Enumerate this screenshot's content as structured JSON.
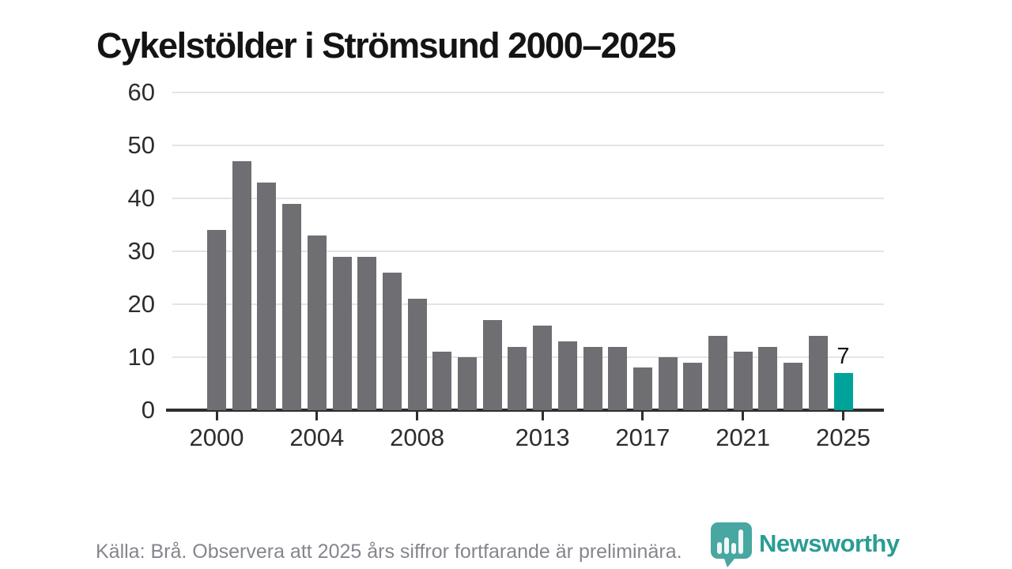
{
  "title": "Cykelstölder i Strömsund 2000–2025",
  "colors": {
    "bar": "#6e6e73",
    "highlight": "#00a39a",
    "grid": "#e4e4e4",
    "axis": "#2e2e2e",
    "brand": "#2a9d94",
    "footer_text": "#85858d"
  },
  "chart_data": {
    "type": "bar",
    "title": "Cykelstölder i Strömsund 2000–2025",
    "categories": [
      2000,
      2001,
      2002,
      2003,
      2004,
      2005,
      2006,
      2007,
      2008,
      2009,
      2010,
      2011,
      2012,
      2013,
      2014,
      2015,
      2016,
      2017,
      2018,
      2019,
      2020,
      2021,
      2022,
      2023,
      2024,
      2025
    ],
    "values": [
      34,
      47,
      43,
      39,
      33,
      29,
      29,
      26,
      21,
      11,
      10,
      17,
      12,
      16,
      13,
      12,
      12,
      8,
      10,
      9,
      14,
      11,
      12,
      9,
      14,
      7
    ],
    "highlight_index": 25,
    "highlight_label": "7",
    "x_tick_years": [
      2000,
      2004,
      2008,
      2013,
      2017,
      2021,
      2025
    ],
    "y_ticks": [
      0,
      10,
      20,
      30,
      40,
      50,
      60
    ],
    "ylim": [
      0,
      60
    ],
    "xlabel": "",
    "ylabel": "",
    "grid": true,
    "legend": "none"
  },
  "footer": {
    "source": "Källa: Brå. Observera att 2025 års siffror fortfarande är preliminära."
  },
  "brand": {
    "name": "Newsworthy"
  }
}
